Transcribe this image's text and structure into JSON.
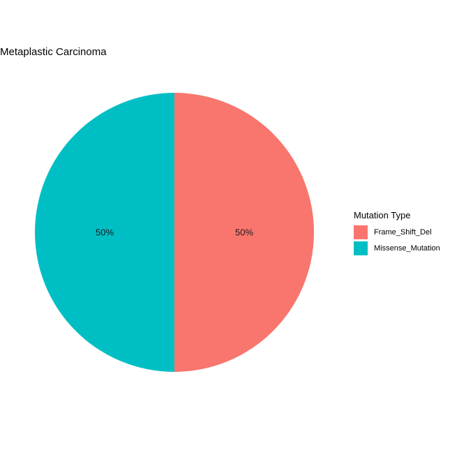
{
  "chart_data": {
    "type": "pie",
    "title": "Metaplastic Carcinoma",
    "categories": [
      "Frame_Shift_Del",
      "Missense_Mutation"
    ],
    "values": [
      50,
      50
    ],
    "labels": [
      "50%",
      "50%"
    ],
    "colors": [
      "#F8766D",
      "#00BFC4"
    ],
    "legend": {
      "title": "Mutation Type",
      "placement": "right"
    }
  }
}
